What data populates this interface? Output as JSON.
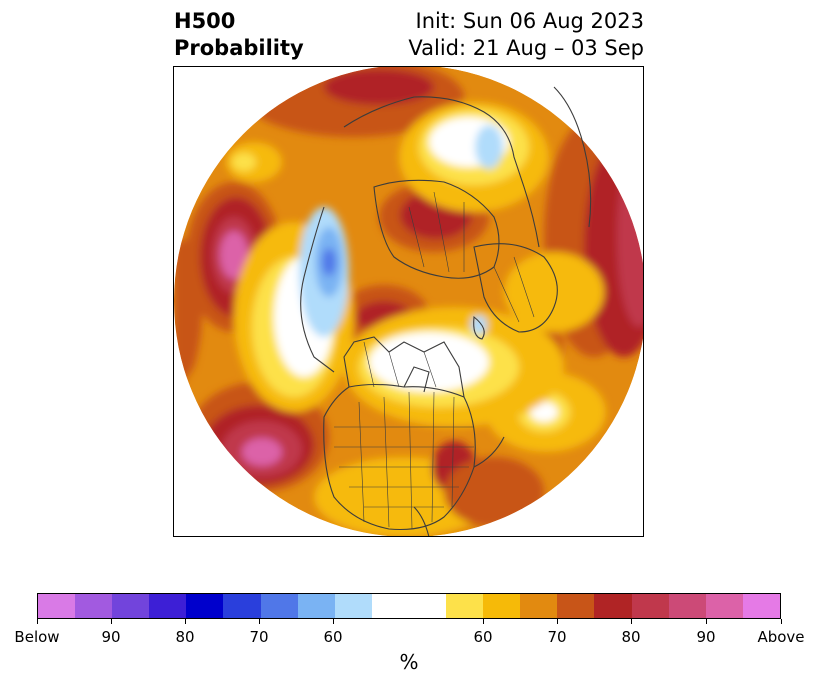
{
  "title": {
    "left_line1": "H500",
    "left_line2": "Probability",
    "right_line1": "Init: Sun 06 Aug 2023",
    "right_line2": "Valid: 21 Aug – 03 Sep"
  },
  "colorbar": {
    "unit": "%",
    "colors": [
      "#d97ae6",
      "#a25ae0",
      "#7244dc",
      "#3d1fd6",
      "#0000cc",
      "#2a3fdc",
      "#5077e8",
      "#7ab3f3",
      "#b0dcfb",
      "#ffffff",
      "#fde14a",
      "#f6ba08",
      "#e28a10",
      "#c85518",
      "#b02425",
      "#c0384c",
      "#cc4a77",
      "#dc62a8",
      "#e57ae6"
    ],
    "tick_labels": [
      "Below",
      "90",
      "80",
      "70",
      "60",
      "60",
      "70",
      "80",
      "90",
      "Above"
    ]
  },
  "map": {
    "projection": "north-polar-stereographic",
    "variable": "500 hPa height anomaly probability",
    "colors": {
      "ocean_base": "#e29210",
      "land_outline": "#3c3c3c"
    }
  }
}
